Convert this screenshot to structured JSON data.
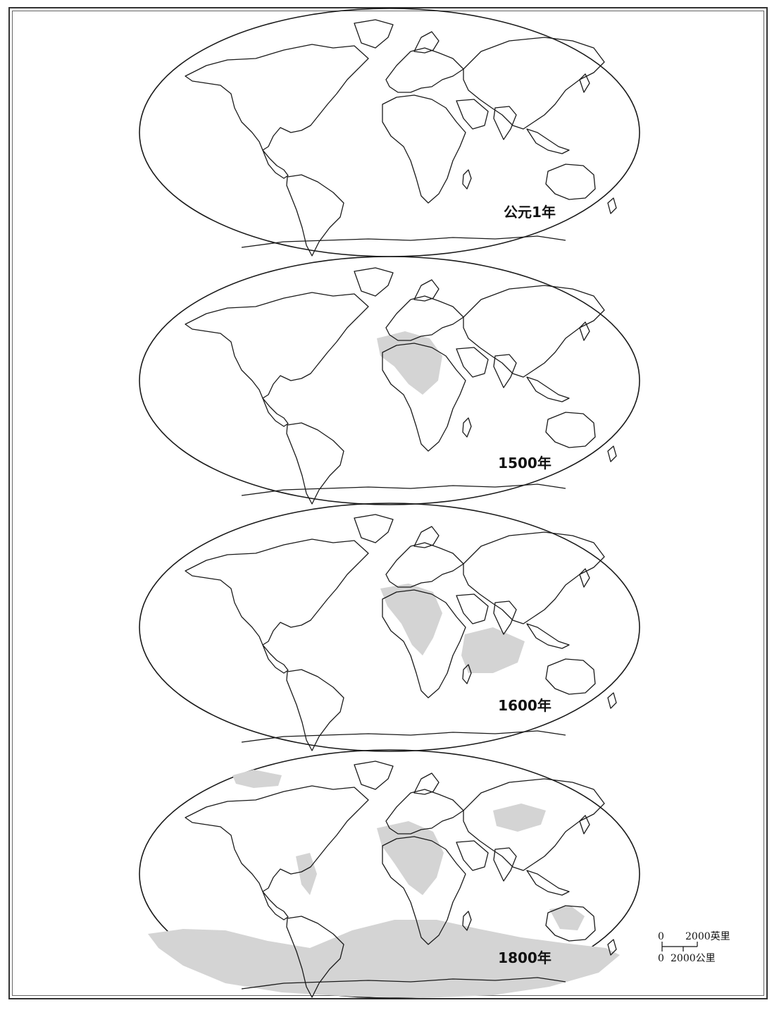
{
  "colors": {
    "uncharted": "#d4d4d4",
    "known": "#ffffff",
    "coast": "#1a1a1a"
  },
  "maps": [
    {
      "id": "year-1",
      "label": "公元1年",
      "ocean_fill": "#d4d4d4"
    },
    {
      "id": "year-1500",
      "label": "1500年",
      "ocean_fill": "#d4d4d4"
    },
    {
      "id": "year-1600",
      "label": "1600年",
      "ocean_fill": "#d4d4d4"
    },
    {
      "id": "year-1800",
      "label": "1800年",
      "ocean_fill": "#ffffff"
    }
  ],
  "scale": {
    "miles_zero": "0",
    "miles_value": "2000英里",
    "km_zero": "0",
    "km_value": "2000公里"
  }
}
